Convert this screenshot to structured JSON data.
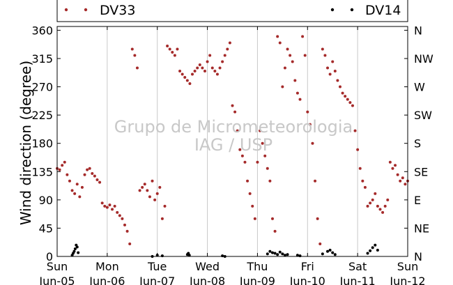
{
  "chart_data": {
    "type": "scatter",
    "title": "",
    "xlabel": "",
    "ylabel": "Wind direction (degree)",
    "ylim": [
      0,
      366
    ],
    "xlim": [
      0,
      7
    ],
    "grid": "vertical",
    "legend_placement": "top",
    "watermark": [
      "Grupo de Micrometeorologia",
      "IAG / USP"
    ],
    "x_ticks": [
      {
        "day": "Sun",
        "date": "Jun-05"
      },
      {
        "day": "Mon",
        "date": "Jun-06"
      },
      {
        "day": "Tue",
        "date": "Jun-07"
      },
      {
        "day": "Wed",
        "date": "Jun-08"
      },
      {
        "day": "Thu",
        "date": "Jun-09"
      },
      {
        "day": "Fri",
        "date": "Jun-10"
      },
      {
        "day": "Sat",
        "date": "Jun-11"
      },
      {
        "day": "Sun",
        "date": "Jun-12"
      }
    ],
    "y_ticks": [
      0,
      45,
      90,
      135,
      180,
      225,
      270,
      315,
      360
    ],
    "y2_ticks": [
      "N",
      "NE",
      "E",
      "SE",
      "S",
      "SW",
      "W",
      "NW",
      "N"
    ],
    "series": [
      {
        "name": "DV33",
        "color": "#a52a2a",
        "x": [
          0.0,
          0.05,
          0.1,
          0.15,
          0.2,
          0.25,
          0.3,
          0.35,
          0.4,
          0.45,
          0.5,
          0.55,
          0.6,
          0.65,
          0.7,
          0.75,
          0.8,
          0.85,
          0.9,
          0.95,
          1.0,
          1.05,
          1.1,
          1.15,
          1.2,
          1.25,
          1.3,
          1.35,
          1.4,
          1.45,
          1.5,
          1.55,
          1.6,
          1.65,
          1.7,
          1.75,
          1.8,
          1.85,
          1.9,
          1.95,
          2.0,
          2.05,
          2.1,
          2.15,
          2.2,
          2.25,
          2.3,
          2.35,
          2.4,
          2.45,
          2.5,
          2.55,
          2.6,
          2.65,
          2.7,
          2.75,
          2.8,
          2.85,
          2.9,
          2.95,
          3.0,
          3.05,
          3.1,
          3.15,
          3.2,
          3.25,
          3.3,
          3.35,
          3.4,
          3.45,
          3.5,
          3.55,
          3.6,
          3.65,
          3.7,
          3.75,
          3.8,
          3.85,
          3.9,
          3.95,
          4.0,
          4.05,
          4.1,
          4.15,
          4.2,
          4.25,
          4.3,
          4.35,
          4.4,
          4.45,
          4.5,
          4.55,
          4.6,
          4.65,
          4.7,
          4.75,
          4.8,
          4.85,
          4.9,
          4.95,
          5.0,
          5.05,
          5.1,
          5.15,
          5.2,
          5.25,
          5.3,
          5.35,
          5.4,
          5.45,
          5.5,
          5.55,
          5.6,
          5.65,
          5.7,
          5.75,
          5.8,
          5.85,
          5.9,
          5.95,
          6.0,
          6.05,
          6.1,
          6.15,
          6.2,
          6.25,
          6.3,
          6.35,
          6.4,
          6.45,
          6.5,
          6.55,
          6.6,
          6.65,
          6.7,
          6.75,
          6.8,
          6.85,
          6.9,
          6.95,
          7.0
        ],
        "y": [
          140,
          138,
          145,
          150,
          130,
          120,
          105,
          100,
          115,
          95,
          110,
          130,
          138,
          140,
          132,
          128,
          122,
          118,
          85,
          80,
          78,
          82,
          75,
          80,
          70,
          65,
          60,
          50,
          40,
          20,
          330,
          320,
          300,
          105,
          110,
          115,
          105,
          95,
          120,
          90,
          100,
          110,
          60,
          80,
          335,
          330,
          325,
          320,
          330,
          295,
          290,
          285,
          280,
          275,
          290,
          295,
          300,
          305,
          300,
          295,
          310,
          320,
          300,
          295,
          290,
          300,
          310,
          320,
          330,
          340,
          240,
          230,
          200,
          170,
          160,
          150,
          120,
          100,
          80,
          60,
          150,
          200,
          180,
          160,
          140,
          120,
          60,
          40,
          350,
          340,
          270,
          300,
          330,
          320,
          310,
          280,
          260,
          250,
          350,
          320,
          230,
          210,
          180,
          120,
          60,
          20,
          330,
          320,
          300,
          290,
          310,
          295,
          280,
          270,
          260,
          255,
          250,
          245,
          240,
          200,
          170,
          140,
          120,
          110,
          80,
          85,
          90,
          100,
          80,
          75,
          70,
          80,
          90,
          150,
          140,
          145,
          130,
          120,
          125,
          115,
          120
        ]
      },
      {
        "name": "DV14",
        "color": "#000000",
        "x": [
          0.3,
          0.32,
          0.34,
          0.36,
          0.38,
          0.4,
          0.42,
          1.9,
          2.0,
          2.1,
          2.6,
          2.62,
          2.64,
          3.3,
          3.35,
          4.2,
          4.25,
          4.3,
          4.35,
          4.4,
          4.45,
          4.5,
          4.55,
          4.6,
          4.8,
          4.85,
          5.3,
          5.4,
          5.45,
          5.5,
          5.55,
          6.2,
          6.25,
          6.3,
          6.35,
          6.4
        ],
        "y": [
          2,
          5,
          8,
          12,
          18,
          15,
          6,
          0,
          2,
          1,
          3,
          5,
          2,
          1,
          0,
          4,
          8,
          6,
          5,
          3,
          7,
          4,
          2,
          3,
          2,
          1,
          4,
          8,
          10,
          6,
          3,
          5,
          9,
          14,
          18,
          10
        ]
      }
    ]
  }
}
